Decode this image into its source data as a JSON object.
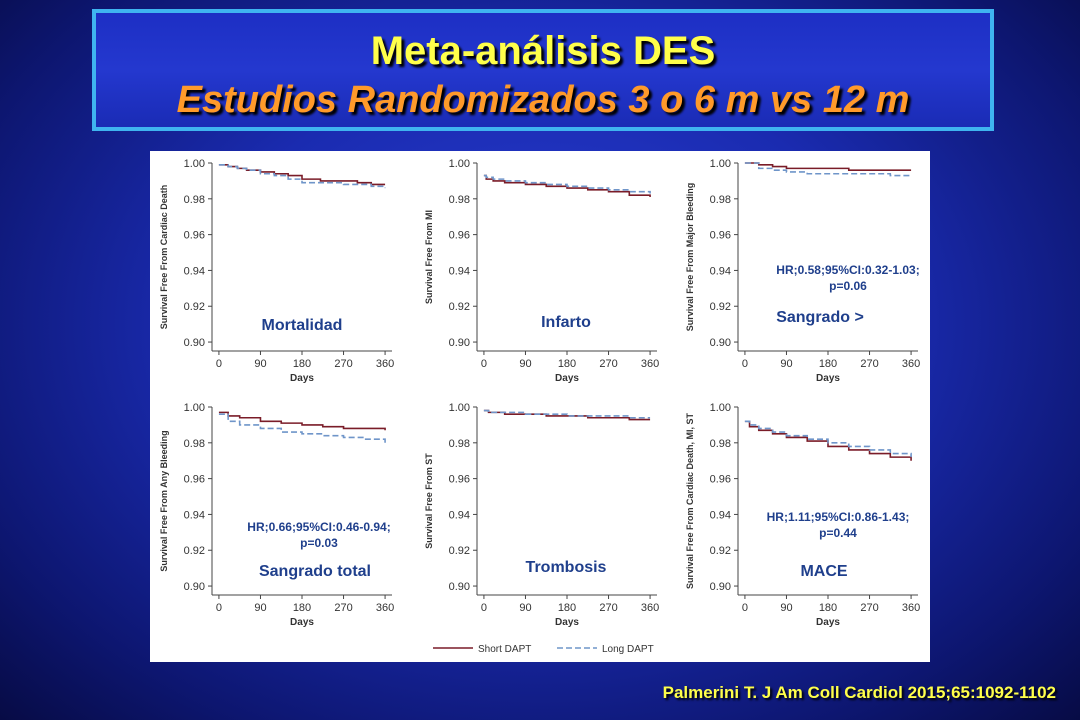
{
  "slide": {
    "title": "Meta-análisis DES",
    "subtitle": "Estudios Randomizados 3 o 6 m vs 12 m",
    "citation": "Palmerini T. J Am Coll Cardiol 2015;65:1092-1102"
  },
  "colors": {
    "title": "#ffff4a",
    "subtitle": "#ff9a2a",
    "title_border": "#3fb4f0",
    "short_dapt": "#7a1c28",
    "long_dapt": "#6f95c9",
    "annotation_text": "#1f3f8c"
  },
  "legend": {
    "short": "Short DAPT",
    "long": "Long DAPT"
  },
  "chart_data": [
    {
      "type": "line",
      "panel_label": "Mortalidad",
      "ylabel": "Survival Free From Cardiac Death",
      "xlabel": "Days",
      "xticks": [
        0,
        90,
        180,
        270,
        360
      ],
      "yticks": [
        "0.90",
        "0.92",
        "0.94",
        "0.96",
        "0.98",
        "1.00"
      ],
      "ylim": [
        0.895,
        1.0
      ],
      "xlim": [
        -15,
        375
      ],
      "annotation": [],
      "series": [
        {
          "name": "Short DAPT",
          "x": [
            0,
            20,
            40,
            60,
            90,
            120,
            150,
            180,
            220,
            270,
            300,
            330,
            360
          ],
          "y": [
            0.999,
            0.998,
            0.997,
            0.996,
            0.995,
            0.994,
            0.993,
            0.991,
            0.99,
            0.99,
            0.989,
            0.988,
            0.988
          ]
        },
        {
          "name": "Long DAPT",
          "x": [
            0,
            20,
            40,
            60,
            90,
            120,
            150,
            180,
            220,
            270,
            300,
            330,
            360
          ],
          "y": [
            0.999,
            0.998,
            0.997,
            0.996,
            0.994,
            0.993,
            0.991,
            0.989,
            0.989,
            0.988,
            0.988,
            0.987,
            0.986
          ]
        }
      ]
    },
    {
      "type": "line",
      "panel_label": "Infarto",
      "ylabel": "Survival Free From MI",
      "xlabel": "Days",
      "xticks": [
        0,
        90,
        180,
        270,
        360
      ],
      "yticks": [
        "0.90",
        "0.92",
        "0.94",
        "0.96",
        "0.98",
        "1.00"
      ],
      "ylim": [
        0.895,
        1.0
      ],
      "xlim": [
        -15,
        375
      ],
      "annotation": [],
      "series": [
        {
          "name": "Short DAPT",
          "x": [
            0,
            5,
            20,
            45,
            90,
            135,
            180,
            225,
            270,
            315,
            360
          ],
          "y": [
            0.993,
            0.991,
            0.99,
            0.989,
            0.988,
            0.987,
            0.986,
            0.985,
            0.984,
            0.982,
            0.981
          ]
        },
        {
          "name": "Long DAPT",
          "x": [
            0,
            5,
            20,
            45,
            90,
            135,
            180,
            225,
            270,
            315,
            360
          ],
          "y": [
            0.993,
            0.992,
            0.991,
            0.99,
            0.989,
            0.988,
            0.987,
            0.986,
            0.985,
            0.984,
            0.983
          ]
        }
      ]
    },
    {
      "type": "line",
      "panel_label": "Sangrado >",
      "ylabel": "Survival Free From Major Bleeding",
      "xlabel": "Days",
      "xticks": [
        0,
        90,
        180,
        270,
        360
      ],
      "yticks": [
        "0.90",
        "0.92",
        "0.94",
        "0.96",
        "0.98",
        "1.00"
      ],
      "ylim": [
        0.895,
        1.0
      ],
      "xlim": [
        -15,
        375
      ],
      "annotation": [
        "HR;0.58;95%CI:0.32-1.03;",
        "p=0.06"
      ],
      "series": [
        {
          "name": "Short DAPT",
          "x": [
            0,
            30,
            60,
            90,
            135,
            180,
            225,
            270,
            315,
            360
          ],
          "y": [
            1.0,
            0.999,
            0.998,
            0.997,
            0.997,
            0.997,
            0.996,
            0.996,
            0.996,
            0.996
          ]
        },
        {
          "name": "Long DAPT",
          "x": [
            0,
            30,
            60,
            90,
            135,
            180,
            225,
            270,
            315,
            360
          ],
          "y": [
            1.0,
            0.997,
            0.996,
            0.995,
            0.994,
            0.994,
            0.994,
            0.994,
            0.993,
            0.993
          ]
        }
      ]
    },
    {
      "type": "line",
      "panel_label": "Sangrado total",
      "ylabel": "Survival Free From Any Bleeding",
      "xlabel": "Days",
      "xticks": [
        0,
        90,
        180,
        270,
        360
      ],
      "yticks": [
        "0.90",
        "0.92",
        "0.94",
        "0.96",
        "0.98",
        "1.00"
      ],
      "ylim": [
        0.895,
        1.0
      ],
      "xlim": [
        -15,
        375
      ],
      "annotation": [
        "HR;0.66;95%CI:0.46-0.94;",
        "p=0.03"
      ],
      "series": [
        {
          "name": "Short DAPT",
          "x": [
            0,
            20,
            45,
            90,
            135,
            180,
            225,
            270,
            315,
            360
          ],
          "y": [
            0.997,
            0.995,
            0.994,
            0.992,
            0.991,
            0.99,
            0.989,
            0.988,
            0.988,
            0.987
          ]
        },
        {
          "name": "Long DAPT",
          "x": [
            0,
            20,
            45,
            90,
            135,
            180,
            225,
            270,
            315,
            345,
            360
          ],
          "y": [
            0.996,
            0.992,
            0.99,
            0.988,
            0.986,
            0.985,
            0.984,
            0.983,
            0.982,
            0.982,
            0.98
          ]
        }
      ]
    },
    {
      "type": "line",
      "panel_label": "Trombosis",
      "ylabel": "Survival Free From ST",
      "xlabel": "Days",
      "xticks": [
        0,
        90,
        180,
        270,
        360
      ],
      "yticks": [
        "0.90",
        "0.92",
        "0.94",
        "0.96",
        "0.98",
        "1.00"
      ],
      "ylim": [
        0.895,
        1.0
      ],
      "xlim": [
        -15,
        375
      ],
      "annotation": [],
      "series": [
        {
          "name": "Short DAPT",
          "x": [
            0,
            10,
            45,
            90,
            135,
            180,
            225,
            270,
            315,
            360
          ],
          "y": [
            0.998,
            0.997,
            0.996,
            0.996,
            0.995,
            0.995,
            0.994,
            0.994,
            0.993,
            0.993
          ]
        },
        {
          "name": "Long DAPT",
          "x": [
            0,
            10,
            45,
            90,
            135,
            180,
            225,
            270,
            315,
            360
          ],
          "y": [
            0.998,
            0.997,
            0.997,
            0.996,
            0.996,
            0.995,
            0.995,
            0.995,
            0.994,
            0.994
          ]
        }
      ]
    },
    {
      "type": "line",
      "panel_label": "MACE",
      "ylabel": "Survival Free From Cardiac Death, MI, ST",
      "xlabel": "Days",
      "xticks": [
        0,
        90,
        180,
        270,
        360
      ],
      "yticks": [
        "0.90",
        "0.92",
        "0.94",
        "0.96",
        "0.98",
        "1.00"
      ],
      "ylim": [
        0.895,
        1.0
      ],
      "xlim": [
        -15,
        375
      ],
      "annotation": [
        "HR;1.11;95%CI:0.86-1.43;",
        "p=0.44"
      ],
      "series": [
        {
          "name": "Short DAPT",
          "x": [
            0,
            10,
            30,
            60,
            90,
            135,
            180,
            225,
            270,
            315,
            360
          ],
          "y": [
            0.992,
            0.989,
            0.987,
            0.985,
            0.983,
            0.981,
            0.978,
            0.976,
            0.974,
            0.972,
            0.97
          ]
        },
        {
          "name": "Long DAPT",
          "x": [
            0,
            10,
            30,
            60,
            90,
            135,
            180,
            225,
            270,
            315,
            360
          ],
          "y": [
            0.992,
            0.99,
            0.988,
            0.986,
            0.984,
            0.982,
            0.98,
            0.978,
            0.976,
            0.974,
            0.972
          ]
        }
      ]
    }
  ]
}
